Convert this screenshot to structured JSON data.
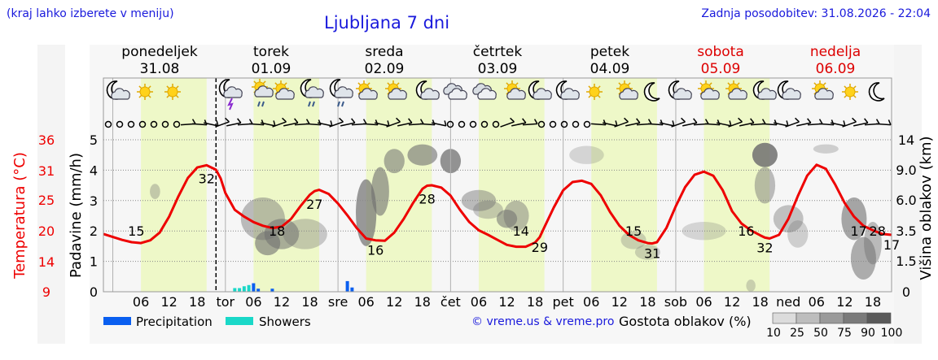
{
  "header": {
    "hint": "(kraj lahko izberete v meniju)",
    "title": "Ljubljana 7 dni",
    "updated": "Zadnja posodobitev: 31.08.2026 - 22:04"
  },
  "days": [
    {
      "name": "ponedeljek",
      "date": "31.08",
      "weekend": false,
      "icons": [
        "moon-cloud",
        "sun",
        "sun"
      ]
    },
    {
      "name": "torek",
      "date": "01.09",
      "weekend": false,
      "icons": [
        "moon-thunder",
        "sun-cloud-rain",
        "sun-cloud",
        "moon-cloud-rain"
      ]
    },
    {
      "name": "sreda",
      "date": "02.09",
      "weekend": false,
      "icons": [
        "moon-cloud-rain",
        "sun-cloud",
        "sun-cloud",
        "moon-cloud"
      ]
    },
    {
      "name": "četrtek",
      "date": "03.09",
      "weekend": false,
      "icons": [
        "cloud",
        "cloud",
        "sun-cloud",
        "moon-cloud"
      ]
    },
    {
      "name": "petek",
      "date": "04.09",
      "weekend": false,
      "icons": [
        "moon-cloud",
        "sun",
        "sun-cloud",
        "moon"
      ]
    },
    {
      "name": "sobota",
      "date": "05.09",
      "weekend": true,
      "icons": [
        "moon-cloud",
        "sun-cloud",
        "sun-cloud",
        "moon-cloud"
      ]
    },
    {
      "name": "nedelja",
      "date": "06.09",
      "weekend": true,
      "icons": [
        "moon-cloud",
        "sun-cloud",
        "sun",
        "moon"
      ]
    }
  ],
  "day_colors": {
    "weekday": "#000000",
    "weekend": "#dd0000"
  },
  "colors": {
    "temperature": "#ee0000",
    "precipitation": "#0a5ff0",
    "showers": "#1ad8c8",
    "daytime": "#eef8c8",
    "night": "#f6f6f6"
  },
  "chart_data": {
    "type": "line",
    "x_unit": "hour",
    "x_range": [
      22,
      190
    ],
    "time_axis_ticks": [
      "06",
      "12",
      "18",
      "tor",
      "06",
      "12",
      "18",
      "sre",
      "06",
      "12",
      "18",
      "čet",
      "06",
      "12",
      "18",
      "pet",
      "06",
      "12",
      "18",
      "sob",
      "06",
      "12",
      "18",
      "ned",
      "06",
      "12",
      "18"
    ],
    "y_left_temperature": {
      "label": "Temperatura (°C)",
      "ticks": [
        "36",
        "31",
        "25",
        "20",
        "14",
        "9"
      ]
    },
    "y_left_precipitation": {
      "label": "Padavine (mm/h)",
      "ticks": [
        "0",
        "1",
        "2",
        "3",
        "4",
        "5"
      ],
      "ylim": [
        0,
        5
      ]
    },
    "y_right_cloud_height": {
      "label": "Višina oblakov (km)",
      "ticks": [
        "0",
        "1.5",
        "3.5",
        "6.0",
        "9.0",
        "14"
      ]
    },
    "temperature_series": {
      "x": [
        22,
        26,
        28,
        30,
        32,
        34,
        36,
        38,
        40,
        42,
        44,
        46,
        47,
        48,
        50,
        52,
        54,
        56,
        58,
        60,
        62,
        64,
        66,
        67,
        68,
        70,
        72,
        74,
        76,
        78,
        80,
        82,
        84,
        86,
        88,
        90,
        91,
        92,
        94,
        96,
        98,
        100,
        102,
        104,
        106,
        108,
        110,
        112,
        114,
        115,
        116,
        118,
        120,
        122,
        124,
        126,
        128,
        130,
        132,
        134,
        136,
        138,
        139,
        140,
        142,
        144,
        146,
        148,
        150,
        152,
        154,
        156,
        158,
        160,
        162,
        163,
        164,
        166,
        168,
        170,
        172,
        174,
        176,
        178,
        180,
        182,
        184,
        186,
        188,
        190
      ],
      "y": [
        17.2,
        15.9,
        15.4,
        15.2,
        15.8,
        17.5,
        21.0,
        25.5,
        29.5,
        31.8,
        32.3,
        31.3,
        29.4,
        26.2,
        22.5,
        21.0,
        19.8,
        19.0,
        18.5,
        18.8,
        20.5,
        23.3,
        25.8,
        26.6,
        26.9,
        26.0,
        23.9,
        21.3,
        18.5,
        16.2,
        15.8,
        15.7,
        17.5,
        20.5,
        24.0,
        27.1,
        27.8,
        27.9,
        27.4,
        25.6,
        22.5,
        19.8,
        18.0,
        17.0,
        15.9,
        14.8,
        14.4,
        14.4,
        15.3,
        16.5,
        18.7,
        23.0,
        26.8,
        28.6,
        28.9,
        28.2,
        25.7,
        22.0,
        19.0,
        17.0,
        15.8,
        15.2,
        15.1,
        15.4,
        18.5,
        23.3,
        27.5,
        30.2,
        30.9,
        30.0,
        26.8,
        22.2,
        19.5,
        18.0,
        16.9,
        16.4,
        16.2,
        17.0,
        20.5,
        25.5,
        30.0,
        32.4,
        31.5,
        28.0,
        24.0,
        21.0,
        19.0,
        18.0,
        17.2,
        17.0
      ],
      "labels": [
        {
          "x": 29,
          "text": "15"
        },
        {
          "x": 44,
          "text": "32"
        },
        {
          "x": 59,
          "text": "18"
        },
        {
          "x": 67,
          "text": "27"
        },
        {
          "x": 80,
          "text": "16"
        },
        {
          "x": 91,
          "text": "28"
        },
        {
          "x": 111,
          "text": "14"
        },
        {
          "x": 115,
          "text": "29"
        },
        {
          "x": 135,
          "text": "15"
        },
        {
          "x": 139,
          "text": "31"
        },
        {
          "x": 159,
          "text": "16"
        },
        {
          "x": 163,
          "text": "32"
        },
        {
          "x": 183,
          "text": "17"
        },
        {
          "x": 187,
          "text": "28"
        },
        {
          "x": 190,
          "text": "17"
        }
      ]
    },
    "precipitation_bars": [
      {
        "x": 50,
        "value": 0.12,
        "kind": "showers"
      },
      {
        "x": 51,
        "value": 0.12,
        "kind": "showers"
      },
      {
        "x": 52,
        "value": 0.18,
        "kind": "showers"
      },
      {
        "x": 53,
        "value": 0.22,
        "kind": "showers"
      },
      {
        "x": 54,
        "value": 0.28,
        "kind": "precipitation"
      },
      {
        "x": 55,
        "value": 0.1,
        "kind": "precipitation"
      },
      {
        "x": 58,
        "value": 0.1,
        "kind": "precipitation"
      },
      {
        "x": 74,
        "value": 0.35,
        "kind": "precipitation"
      },
      {
        "x": 75,
        "value": 0.14,
        "kind": "precipitation"
      }
    ],
    "legend": {
      "precipitation": "Precipitation",
      "showers": "Showers",
      "cloud_density_title": "Gostota oblakov (%)",
      "cloud_density_ticks": [
        "10",
        "25",
        "50",
        "75",
        "90",
        "100"
      ]
    },
    "credit": "© vreme.us & vreme.pro",
    "grid": true,
    "now_marker_x": 46
  }
}
